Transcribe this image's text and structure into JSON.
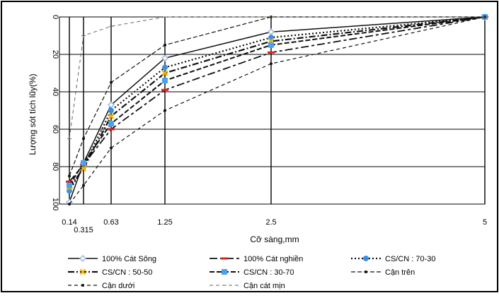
{
  "chart_data": {
    "type": "line",
    "xlabel": "Cỡ sàng,mm",
    "ylabel": "Lượng sót tích lũy(%)",
    "x_ticks": [
      "0.14",
      "0.315",
      "0.63",
      "1.25",
      "2.5",
      "5"
    ],
    "y_ticks": [
      "0",
      "20",
      "40",
      "60",
      "80",
      "100"
    ],
    "ylim": [
      0,
      100
    ],
    "y_inverted": true,
    "grid": true,
    "legend_position": "bottom",
    "series": [
      {
        "name": "100% Cát Sông",
        "style": "solid-open-diamond",
        "color": "#111111",
        "marker_color": "#9db8e0",
        "x": [
          0.14,
          0.315,
          0.63,
          1.25,
          2.5,
          5
        ],
        "y": [
          99,
          78,
          47,
          22,
          8,
          0
        ]
      },
      {
        "name": "100% Cát nghiền",
        "style": "longdash-dash",
        "color": "#111111",
        "marker_color": "#e02020",
        "x": [
          0.14,
          0.315,
          0.63,
          1.25,
          2.5,
          5
        ],
        "y": [
          88,
          79,
          60,
          39,
          19,
          0
        ]
      },
      {
        "name": "CS/CN : 70-30",
        "style": "dotted-circle",
        "color": "#111111",
        "marker_color": "#3b8ee8",
        "x": [
          0.14,
          0.315,
          0.63,
          1.25,
          2.5,
          5
        ],
        "y": [
          93,
          80,
          50,
          27,
          11,
          0
        ]
      },
      {
        "name": "CS/CN : 50-50",
        "style": "dashdot-x",
        "color": "#111111",
        "marker_color": "#f0b400",
        "x": [
          0.14,
          0.315,
          0.63,
          1.25,
          2.5,
          5
        ],
        "y": [
          91,
          81,
          53,
          30,
          13,
          0
        ]
      },
      {
        "name": "CS/CN : 30-70",
        "style": "dash-square",
        "color": "#111111",
        "marker_color": "#4aa3ea",
        "x": [
          0.14,
          0.315,
          0.63,
          1.25,
          2.5,
          5
        ],
        "y": [
          90,
          78,
          57,
          34,
          15,
          0
        ]
      },
      {
        "name": "Cận trên",
        "style": "dash-dot-marker",
        "color": "#111111",
        "marker_color": "#111111",
        "x": [
          0.14,
          0.315,
          0.63,
          1.25,
          2.5,
          5
        ],
        "y": [
          85,
          65,
          35,
          15,
          0,
          0
        ]
      },
      {
        "name": "Cận dưới",
        "style": "shortdash-dot-marker",
        "color": "#111111",
        "marker_color": "#111111",
        "x": [
          0.14,
          0.315,
          0.63,
          1.25,
          2.5,
          5
        ],
        "y": [
          100,
          90,
          70,
          50,
          25,
          0
        ]
      },
      {
        "name": "Cận cát mịn",
        "style": "light-dash",
        "color": "#666666",
        "marker_color": "#666666",
        "x": [
          0.14,
          0.315,
          0.63,
          1.25,
          2.5,
          5
        ],
        "y": [
          65,
          10,
          5,
          0,
          0,
          0
        ]
      }
    ]
  }
}
